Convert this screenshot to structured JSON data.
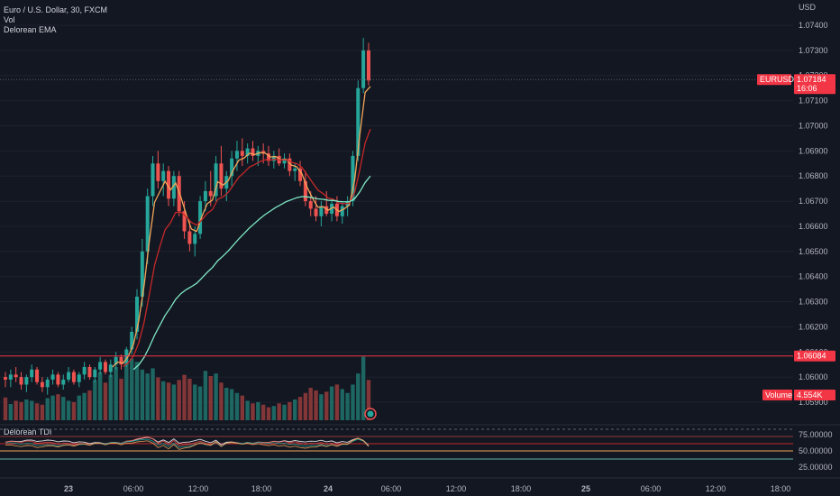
{
  "header": {
    "title": "Euro / U.S. Dollar, 30, FXCM",
    "vol_label": "Vol",
    "indicator_label": "Delorean EMA",
    "tdi_label": "Delorean TDI"
  },
  "colors": {
    "background": "#131722",
    "up": "#26a69a",
    "down": "#ef5350",
    "ema_fast": "#f2a65a",
    "ema_mid": "#c62828",
    "ema_slow": "#7ee8c5",
    "price_tag": "#f23645",
    "grid": "#1e222d"
  },
  "chart_data": {
    "type": "candlestick",
    "symbol": "EURUSD",
    "currency": "USD",
    "y_ticks": [
      "1.07400",
      "1.07300",
      "1.07200",
      "1.07100",
      "1.07000",
      "1.06900",
      "1.06800",
      "1.06700",
      "1.06600",
      "1.06500",
      "1.06400",
      "1.06300",
      "1.06200",
      "1.06100",
      "1.06000",
      "1.05900"
    ],
    "x_ticks": [
      "23",
      "06:00",
      "12:00",
      "18:00",
      "24",
      "06:00",
      "12:00",
      "18:00",
      "25",
      "06:00",
      "12:00",
      "18:00"
    ],
    "price_tag": {
      "label": "EURUSD",
      "value": "1.07184",
      "countdown": "16:06"
    },
    "level_line": {
      "value": "1.06084"
    },
    "volume_tag": {
      "label": "Volume",
      "value": "4.554K"
    },
    "tdi_ticks": [
      "75.00000",
      "50.00000",
      "25.00000"
    ],
    "candles": [
      [
        1.06,
        1.0602,
        1.0596,
        1.0599
      ],
      [
        1.0599,
        1.0603,
        1.0596,
        1.0601
      ],
      [
        1.0601,
        1.0604,
        1.0598,
        1.06
      ],
      [
        1.06,
        1.0602,
        1.0595,
        1.0597
      ],
      [
        1.0597,
        1.0601,
        1.0594,
        1.06
      ],
      [
        1.06,
        1.0605,
        1.0598,
        1.0603
      ],
      [
        1.0603,
        1.0604,
        1.0597,
        1.0598
      ],
      [
        1.0598,
        1.06,
        1.0594,
        1.0596
      ],
      [
        1.0596,
        1.06,
        1.0593,
        1.0599
      ],
      [
        1.0599,
        1.0603,
        1.0597,
        1.0601
      ],
      [
        1.0601,
        1.0602,
        1.0596,
        1.0597
      ],
      [
        1.0597,
        1.0601,
        1.0595,
        1.0599
      ],
      [
        1.0599,
        1.0604,
        1.0598,
        1.0602
      ],
      [
        1.0602,
        1.0603,
        1.0597,
        1.0598
      ],
      [
        1.0598,
        1.0602,
        1.0596,
        1.0601
      ],
      [
        1.0601,
        1.0606,
        1.0599,
        1.0604
      ],
      [
        1.0604,
        1.0605,
        1.0599,
        1.06
      ],
      [
        1.06,
        1.0604,
        1.0598,
        1.0603
      ],
      [
        1.0603,
        1.0608,
        1.0601,
        1.0606
      ],
      [
        1.0606,
        1.0607,
        1.0601,
        1.0602
      ],
      [
        1.0602,
        1.0607,
        1.06,
        1.0605
      ],
      [
        1.0605,
        1.061,
        1.0603,
        1.0608
      ],
      [
        1.0608,
        1.0609,
        1.0603,
        1.0605
      ],
      [
        1.0605,
        1.0612,
        1.0604,
        1.0611
      ],
      [
        1.0611,
        1.062,
        1.0609,
        1.0618
      ],
      [
        1.0618,
        1.0635,
        1.0615,
        1.0632
      ],
      [
        1.0632,
        1.0655,
        1.0628,
        1.065
      ],
      [
        1.065,
        1.0675,
        1.0645,
        1.0672
      ],
      [
        1.0672,
        1.0688,
        1.0668,
        1.0685
      ],
      [
        1.0685,
        1.069,
        1.0675,
        1.0678
      ],
      [
        1.0678,
        1.0685,
        1.0672,
        1.0682
      ],
      [
        1.0682,
        1.0684,
        1.0668,
        1.0671
      ],
      [
        1.0671,
        1.0682,
        1.0668,
        1.068
      ],
      [
        1.068,
        1.0682,
        1.0664,
        1.0666
      ],
      [
        1.0666,
        1.067,
        1.0655,
        1.0658
      ],
      [
        1.0658,
        1.0662,
        1.065,
        1.0653
      ],
      [
        1.0653,
        1.066,
        1.0648,
        1.0657
      ],
      [
        1.0657,
        1.0672,
        1.0655,
        1.067
      ],
      [
        1.067,
        1.0678,
        1.0666,
        1.0674
      ],
      [
        1.0674,
        1.0682,
        1.0668,
        1.0672
      ],
      [
        1.0672,
        1.0688,
        1.067,
        1.0685
      ],
      [
        1.0685,
        1.0692,
        1.0672,
        1.0675
      ],
      [
        1.0675,
        1.0682,
        1.067,
        1.068
      ],
      [
        1.068,
        1.069,
        1.0676,
        1.0687
      ],
      [
        1.0687,
        1.0694,
        1.0682,
        1.069
      ],
      [
        1.069,
        1.0695,
        1.0684,
        1.0688
      ],
      [
        1.0688,
        1.0693,
        1.0685,
        1.0691
      ],
      [
        1.0691,
        1.0694,
        1.0686,
        1.0688
      ],
      [
        1.0688,
        1.0692,
        1.0684,
        1.069
      ],
      [
        1.069,
        1.0693,
        1.0685,
        1.0689
      ],
      [
        1.0689,
        1.0692,
        1.0684,
        1.0686
      ],
      [
        1.0686,
        1.069,
        1.0683,
        1.0688
      ],
      [
        1.0688,
        1.0691,
        1.0684,
        1.0685
      ],
      [
        1.0685,
        1.0689,
        1.0683,
        1.0687
      ],
      [
        1.0687,
        1.0689,
        1.068,
        1.0682
      ],
      [
        1.0682,
        1.0685,
        1.0678,
        1.0683
      ],
      [
        1.0683,
        1.0686,
        1.0676,
        1.0678
      ],
      [
        1.0678,
        1.0682,
        1.0668,
        1.067
      ],
      [
        1.067,
        1.0674,
        1.0664,
        1.0667
      ],
      [
        1.0667,
        1.0672,
        1.0662,
        1.0664
      ],
      [
        1.0664,
        1.067,
        1.066,
        1.0668
      ],
      [
        1.0668,
        1.0674,
        1.0664,
        1.0665
      ],
      [
        1.0665,
        1.0671,
        1.0662,
        1.0669
      ],
      [
        1.0669,
        1.0672,
        1.0662,
        1.0664
      ],
      [
        1.0664,
        1.067,
        1.0661,
        1.0668
      ],
      [
        1.0668,
        1.0672,
        1.0664,
        1.067
      ],
      [
        1.067,
        1.069,
        1.0668,
        1.0688
      ],
      [
        1.0688,
        1.0718,
        1.0686,
        1.0715
      ],
      [
        1.0715,
        1.0735,
        1.0713,
        1.073
      ],
      [
        1.073,
        1.0733,
        1.0716,
        1.0718
      ]
    ],
    "volume": [
      0.35,
      0.25,
      0.3,
      0.28,
      0.32,
      0.3,
      0.26,
      0.24,
      0.34,
      0.38,
      0.4,
      0.36,
      0.3,
      0.28,
      0.38,
      0.42,
      0.46,
      0.62,
      0.74,
      0.58,
      0.7,
      0.82,
      0.64,
      0.88,
      0.95,
      0.9,
      0.78,
      0.72,
      0.8,
      0.66,
      0.6,
      0.58,
      0.55,
      0.62,
      0.7,
      0.64,
      0.55,
      0.52,
      0.76,
      0.68,
      0.72,
      0.58,
      0.5,
      0.48,
      0.42,
      0.38,
      0.3,
      0.26,
      0.28,
      0.24,
      0.2,
      0.22,
      0.26,
      0.24,
      0.28,
      0.32,
      0.36,
      0.42,
      0.5,
      0.46,
      0.4,
      0.44,
      0.52,
      0.55,
      0.48,
      0.42,
      0.55,
      0.72,
      0.98,
      0.62
    ]
  }
}
